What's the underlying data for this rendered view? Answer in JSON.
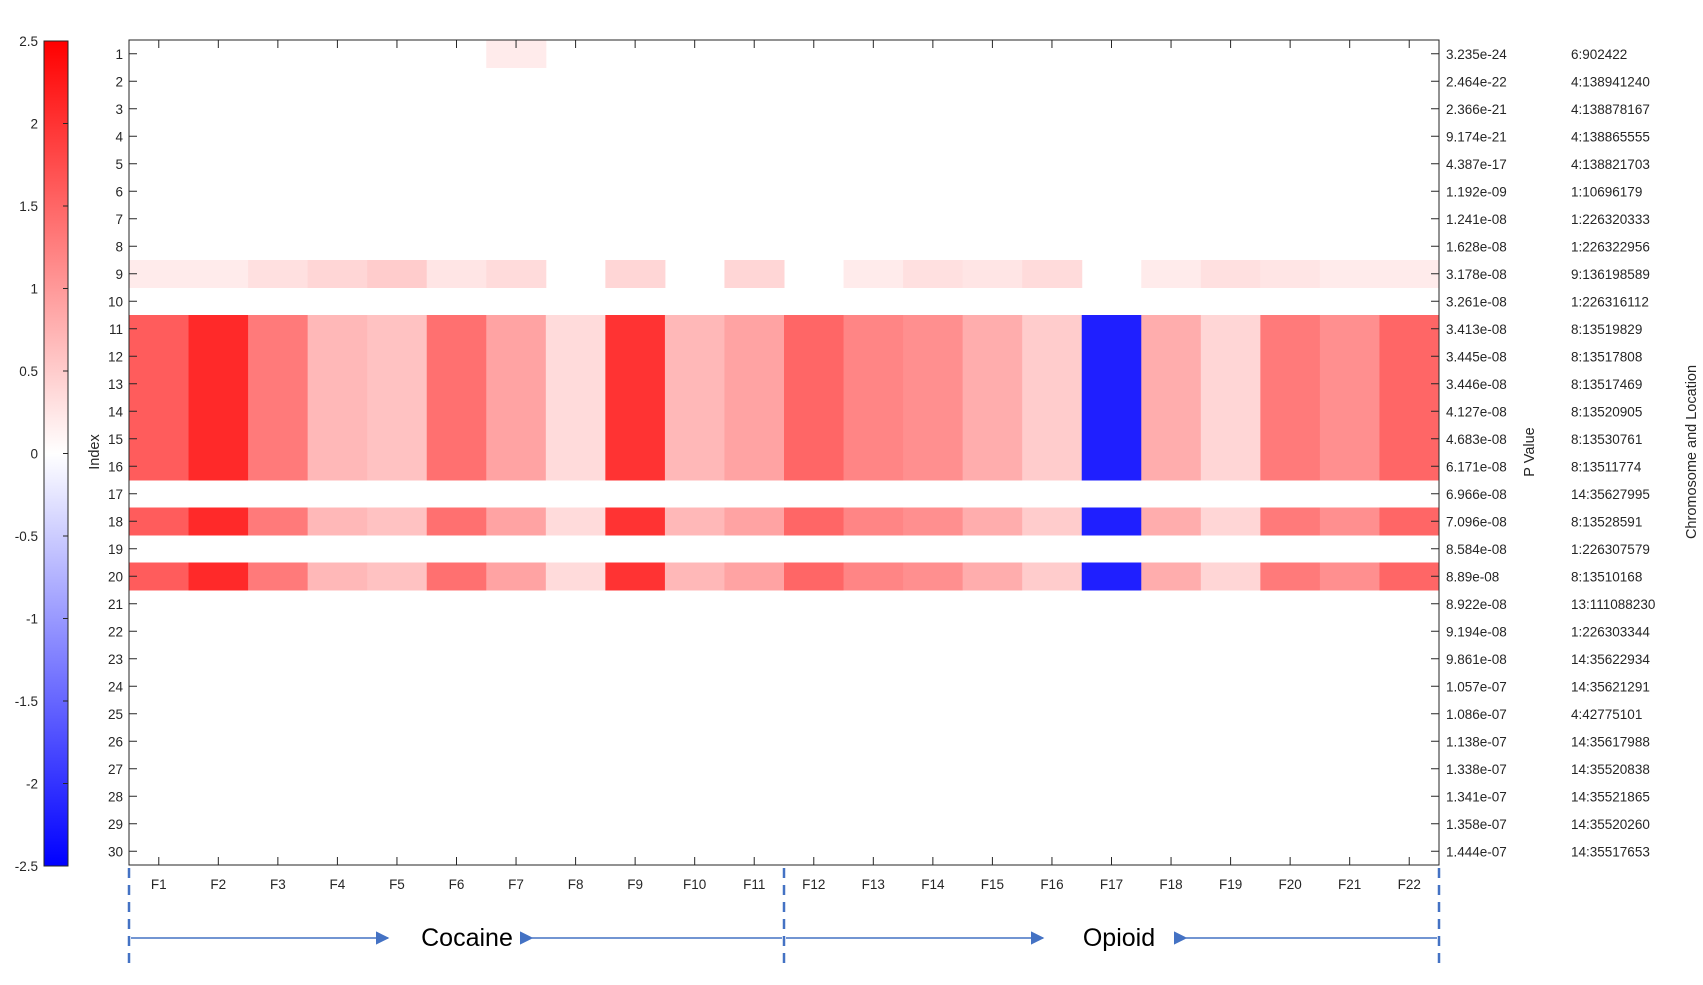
{
  "chart_data": {
    "type": "heatmap",
    "xlabels": [
      "F1",
      "F2",
      "F3",
      "F4",
      "F5",
      "F6",
      "F7",
      "F8",
      "F9",
      "F10",
      "F11",
      "F12",
      "F13",
      "F14",
      "F15",
      "F16",
      "F17",
      "F18",
      "F19",
      "F20",
      "F21",
      "F22"
    ],
    "ylabel": "Index",
    "ylabels": [
      "1",
      "2",
      "3",
      "4",
      "5",
      "6",
      "7",
      "8",
      "9",
      "10",
      "11",
      "12",
      "13",
      "14",
      "15",
      "16",
      "17",
      "18",
      "19",
      "20",
      "21",
      "22",
      "23",
      "24",
      "25",
      "26",
      "27",
      "28",
      "29",
      "30"
    ],
    "right_axis_label": "P Value",
    "p_values": [
      "3.235e-24",
      "2.464e-22",
      "2.366e-21",
      "9.174e-21",
      "4.387e-17",
      "1.192e-09",
      "1.241e-08",
      "1.628e-08",
      "3.178e-08",
      "3.261e-08",
      "3.413e-08",
      "3.445e-08",
      "3.446e-08",
      "4.127e-08",
      "4.683e-08",
      "6.171e-08",
      "6.966e-08",
      "7.096e-08",
      "8.584e-08",
      "8.89e-08",
      "8.922e-08",
      "9.194e-08",
      "9.861e-08",
      "1.057e-07",
      "1.086e-07",
      "1.138e-07",
      "1.338e-07",
      "1.341e-07",
      "1.358e-07",
      "1.444e-07"
    ],
    "location_label": "Chromosome and Location",
    "locations": [
      "6:902422",
      "4:138941240",
      "4:138878167",
      "4:138865555",
      "4:138821703",
      "1:10696179",
      "1:226320333",
      "1:226322956",
      "9:136198589",
      "1:226316112",
      "8:13519829",
      "8:13517808",
      "8:13517469",
      "8:13520905",
      "8:13530761",
      "8:13511774",
      "14:35627995",
      "8:13528591",
      "1:226307579",
      "8:13510168",
      "13:111088230",
      "1:226303344",
      "14:35622934",
      "14:35621291",
      "4:42775101",
      "14:35617988",
      "14:35520838",
      "14:35521865",
      "14:35520260",
      "14:35517653"
    ],
    "colorbar": {
      "range": [
        -2.5,
        2.5
      ],
      "ticks": [
        "2.5",
        "2",
        "1.5",
        "1",
        "0.5",
        "0",
        "-0.5",
        "-1",
        "-1.5",
        "-2",
        "-2.5"
      ],
      "low_color": "#0000ff",
      "mid_color": "#ffffff",
      "high_color": "#ff0000"
    },
    "groups": [
      {
        "label": "Cocaine",
        "columns": [
          "F1",
          "F11"
        ]
      },
      {
        "label": "Opioid",
        "columns": [
          "F12",
          "F22"
        ]
      }
    ],
    "row_values": {
      "1": [
        0,
        0,
        0,
        0,
        0,
        0,
        0.2,
        0,
        0,
        0,
        0,
        0,
        0,
        0,
        0,
        0,
        0,
        0,
        0,
        0,
        0,
        0
      ],
      "9": [
        0.2,
        0.2,
        0.3,
        0.4,
        0.5,
        0.25,
        0.35,
        0,
        0.4,
        0,
        0.4,
        0,
        0.2,
        0.3,
        0.25,
        0.35,
        0,
        0.2,
        0.3,
        0.25,
        0.2,
        0.2
      ],
      "11": [
        1.6,
        2.1,
        1.3,
        0.7,
        0.6,
        1.4,
        0.9,
        0.35,
        2.0,
        0.7,
        0.9,
        1.5,
        1.2,
        1.1,
        0.8,
        0.5,
        -2.2,
        0.8,
        0.4,
        1.3,
        1.1,
        1.5
      ],
      "12": [
        1.6,
        2.1,
        1.3,
        0.7,
        0.6,
        1.4,
        0.9,
        0.35,
        2.0,
        0.7,
        0.9,
        1.5,
        1.2,
        1.1,
        0.8,
        0.5,
        -2.2,
        0.8,
        0.4,
        1.3,
        1.1,
        1.5
      ],
      "13": [
        1.6,
        2.1,
        1.3,
        0.7,
        0.6,
        1.4,
        0.9,
        0.35,
        2.0,
        0.7,
        0.9,
        1.5,
        1.2,
        1.1,
        0.8,
        0.5,
        -2.2,
        0.8,
        0.4,
        1.3,
        1.1,
        1.5
      ],
      "14": [
        1.6,
        2.1,
        1.3,
        0.7,
        0.6,
        1.4,
        0.9,
        0.35,
        2.0,
        0.7,
        0.9,
        1.5,
        1.2,
        1.1,
        0.8,
        0.5,
        -2.2,
        0.8,
        0.4,
        1.3,
        1.1,
        1.5
      ],
      "15": [
        1.6,
        2.1,
        1.3,
        0.7,
        0.6,
        1.4,
        0.9,
        0.35,
        2.0,
        0.7,
        0.9,
        1.5,
        1.2,
        1.1,
        0.8,
        0.5,
        -2.2,
        0.8,
        0.4,
        1.3,
        1.1,
        1.5
      ],
      "16": [
        1.6,
        2.1,
        1.3,
        0.7,
        0.6,
        1.4,
        0.9,
        0.35,
        2.0,
        0.7,
        0.9,
        1.5,
        1.2,
        1.1,
        0.8,
        0.5,
        -2.2,
        0.8,
        0.4,
        1.3,
        1.1,
        1.5
      ],
      "18": [
        1.6,
        2.1,
        1.3,
        0.7,
        0.6,
        1.4,
        0.9,
        0.35,
        2.0,
        0.7,
        0.9,
        1.5,
        1.2,
        1.1,
        0.8,
        0.5,
        -2.2,
        0.8,
        0.4,
        1.3,
        1.1,
        1.5
      ],
      "20": [
        1.6,
        2.1,
        1.3,
        0.7,
        0.6,
        1.4,
        0.9,
        0.35,
        2.0,
        0.7,
        0.9,
        1.5,
        1.2,
        1.1,
        0.8,
        0.5,
        -2.2,
        0.8,
        0.4,
        1.3,
        1.1,
        1.5
      ]
    }
  }
}
